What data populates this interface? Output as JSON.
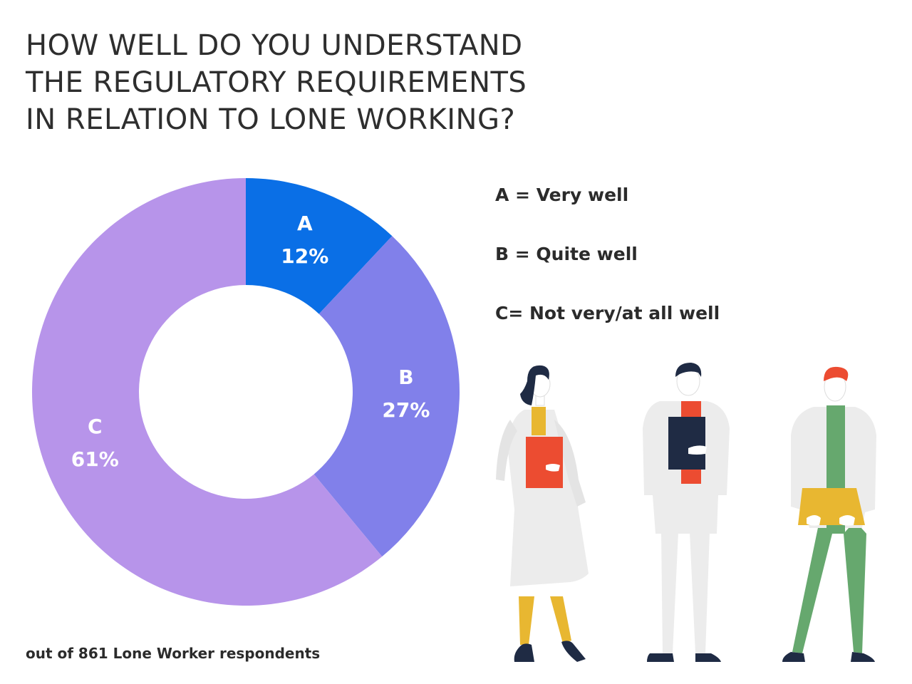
{
  "title_lines": [
    "HOW WELL DO YOU UNDERSTAND",
    "THE REGULATORY REQUIREMENTS",
    "IN RELATION TO LONE WORKING?"
  ],
  "legend": [
    "A = Very well",
    "B = Quite well",
    "C= Not very/at all well"
  ],
  "footnote": "out of 861 Lone Worker respondents",
  "chart_data": {
    "type": "pie",
    "donut": true,
    "title": "HOW WELL DO YOU UNDERSTAND THE REGULATORY REQUIREMENTS IN RELATION TO LONE WORKING?",
    "slices": [
      {
        "letter": "A",
        "label": "12%",
        "value": 12,
        "color": "#0a6fe6"
      },
      {
        "letter": "B",
        "label": "27%",
        "value": 27,
        "color": "#8180ea"
      },
      {
        "letter": "C",
        "label": "61%",
        "value": 61,
        "color": "#b794ea"
      }
    ],
    "legend_placement": "right"
  }
}
